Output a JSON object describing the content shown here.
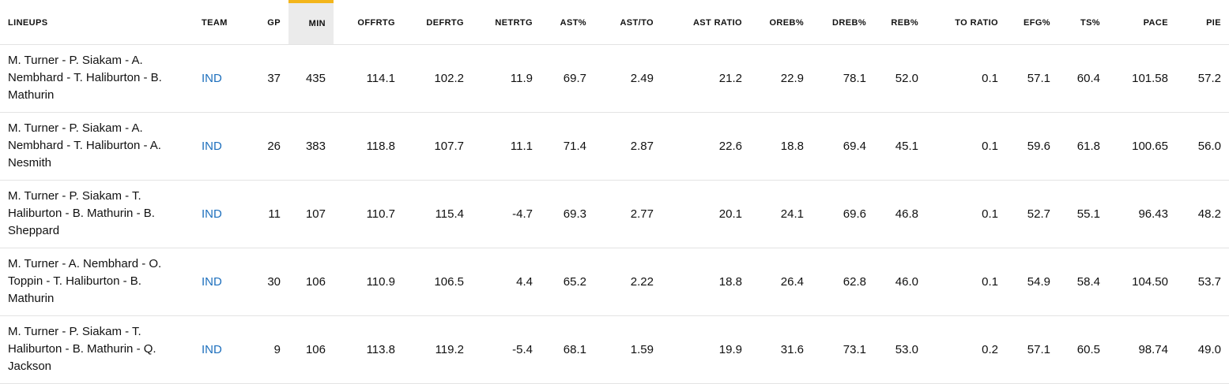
{
  "table": {
    "columns": [
      {
        "key": "lineups",
        "label": "LINEUPS"
      },
      {
        "key": "team",
        "label": "TEAM"
      },
      {
        "key": "gp",
        "label": "GP"
      },
      {
        "key": "min",
        "label": "MIN"
      },
      {
        "key": "offrtg",
        "label": "OFFRTG"
      },
      {
        "key": "defrtg",
        "label": "DEFRTG"
      },
      {
        "key": "netrtg",
        "label": "NETRTG"
      },
      {
        "key": "ast_pct",
        "label": "AST%"
      },
      {
        "key": "ast_to",
        "label": "AST/TO"
      },
      {
        "key": "ast_ratio",
        "label": "AST RATIO"
      },
      {
        "key": "oreb_pct",
        "label": "OREB%"
      },
      {
        "key": "dreb_pct",
        "label": "DREB%"
      },
      {
        "key": "reb_pct",
        "label": "REB%"
      },
      {
        "key": "to_ratio",
        "label": "TO RATIO"
      },
      {
        "key": "efg_pct",
        "label": "EFG%"
      },
      {
        "key": "ts_pct",
        "label": "TS%"
      },
      {
        "key": "pace",
        "label": "PACE"
      },
      {
        "key": "pie",
        "label": "PIE"
      }
    ],
    "sorted_column": "MIN",
    "accent_color": "#f3b51b",
    "link_color": "#1d6fbd",
    "rows": [
      {
        "lineup_lines": [
          "M. Turner - P. Siakam - A.",
          "Nembhard - T. Haliburton - B.",
          "Mathurin"
        ],
        "team": "IND",
        "gp": "37",
        "min": "435",
        "offrtg": "114.1",
        "defrtg": "102.2",
        "netrtg": "11.9",
        "ast_pct": "69.7",
        "ast_to": "2.49",
        "ast_ratio": "21.2",
        "oreb_pct": "22.9",
        "dreb_pct": "78.1",
        "reb_pct": "52.0",
        "to_ratio": "0.1",
        "efg_pct": "57.1",
        "ts_pct": "60.4",
        "pace": "101.58",
        "pie": "57.2"
      },
      {
        "lineup_lines": [
          "M. Turner - P. Siakam - A.",
          "Nembhard - T. Haliburton - A.",
          "Nesmith"
        ],
        "team": "IND",
        "gp": "26",
        "min": "383",
        "offrtg": "118.8",
        "defrtg": "107.7",
        "netrtg": "11.1",
        "ast_pct": "71.4",
        "ast_to": "2.87",
        "ast_ratio": "22.6",
        "oreb_pct": "18.8",
        "dreb_pct": "69.4",
        "reb_pct": "45.1",
        "to_ratio": "0.1",
        "efg_pct": "59.6",
        "ts_pct": "61.8",
        "pace": "100.65",
        "pie": "56.0"
      },
      {
        "lineup_lines": [
          "M. Turner - P. Siakam - T.",
          "Haliburton - B. Mathurin - B.",
          "Sheppard"
        ],
        "team": "IND",
        "gp": "11",
        "min": "107",
        "offrtg": "110.7",
        "defrtg": "115.4",
        "netrtg": "-4.7",
        "ast_pct": "69.3",
        "ast_to": "2.77",
        "ast_ratio": "20.1",
        "oreb_pct": "24.1",
        "dreb_pct": "69.6",
        "reb_pct": "46.8",
        "to_ratio": "0.1",
        "efg_pct": "52.7",
        "ts_pct": "55.1",
        "pace": "96.43",
        "pie": "48.2"
      },
      {
        "lineup_lines": [
          "M. Turner - A. Nembhard - O.",
          "Toppin - T. Haliburton - B.",
          "Mathurin"
        ],
        "team": "IND",
        "gp": "30",
        "min": "106",
        "offrtg": "110.9",
        "defrtg": "106.5",
        "netrtg": "4.4",
        "ast_pct": "65.2",
        "ast_to": "2.22",
        "ast_ratio": "18.8",
        "oreb_pct": "26.4",
        "dreb_pct": "62.8",
        "reb_pct": "46.0",
        "to_ratio": "0.1",
        "efg_pct": "54.9",
        "ts_pct": "58.4",
        "pace": "104.50",
        "pie": "53.7"
      },
      {
        "lineup_lines": [
          "M. Turner - P. Siakam - T.",
          "Haliburton - B. Mathurin - Q.",
          "Jackson"
        ],
        "team": "IND",
        "gp": "9",
        "min": "106",
        "offrtg": "113.8",
        "defrtg": "119.2",
        "netrtg": "-5.4",
        "ast_pct": "68.1",
        "ast_to": "1.59",
        "ast_ratio": "19.9",
        "oreb_pct": "31.6",
        "dreb_pct": "73.1",
        "reb_pct": "53.0",
        "to_ratio": "0.2",
        "efg_pct": "57.1",
        "ts_pct": "60.5",
        "pace": "98.74",
        "pie": "49.0"
      }
    ]
  }
}
